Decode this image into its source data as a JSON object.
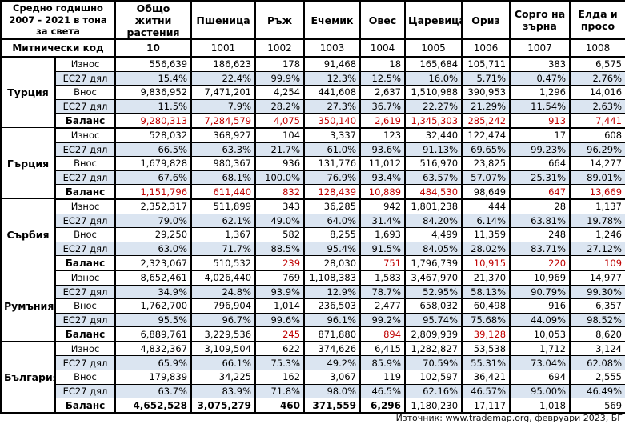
{
  "table": {
    "corner_header": "Средно годишно 2007 - 2021 в тона за света",
    "customs_code_label": "Митнически код",
    "columns": [
      {
        "label": "Общо житни растения",
        "code": "10",
        "bold_code": true
      },
      {
        "label": "Пшеница",
        "code": "1001"
      },
      {
        "label": "Ръж",
        "code": "1002"
      },
      {
        "label": "Ечемик",
        "code": "1003"
      },
      {
        "label": "Овес",
        "code": "1004"
      },
      {
        "label": "Царевица",
        "code": "1005"
      },
      {
        "label": "Ориз",
        "code": "1006"
      },
      {
        "label": "Сорго на зърна",
        "code": "1007"
      },
      {
        "label": "Елда и просо",
        "code": "1008"
      }
    ],
    "countries": [
      {
        "name": "Турция",
        "rows": [
          {
            "label": "Износ",
            "values": [
              "556,639",
              "186,623",
              "178",
              "91,468",
              "18",
              "165,684",
              "105,711",
              "383",
              "6,575"
            ]
          },
          {
            "label": "ЕС27 дял",
            "values": [
              "15.4%",
              "22.4%",
              "99.9%",
              "12.3%",
              "12.5%",
              "16.0%",
              "5.71%",
              "0.47%",
              "2.76%"
            ]
          },
          {
            "label": "Внос",
            "values": [
              "9,836,952",
              "7,471,201",
              "4,254",
              "441,608",
              "2,637",
              "1,510,988",
              "390,953",
              "1,296",
              "14,016"
            ]
          },
          {
            "label": "ЕС27 дял",
            "values": [
              "11.5%",
              "7.9%",
              "28.2%",
              "27.3%",
              "36.7%",
              "22.27%",
              "21.29%",
              "11.54%",
              "2.63%"
            ]
          },
          {
            "label": "Баланс",
            "values": [
              "9,280,313",
              "7,284,579",
              "4,075",
              "350,140",
              "2,619",
              "1,345,303",
              "285,242",
              "913",
              "7,441"
            ],
            "red": [
              true,
              true,
              true,
              true,
              true,
              true,
              true,
              true,
              true
            ]
          }
        ]
      },
      {
        "name": "Гърция",
        "rows": [
          {
            "label": "Износ",
            "values": [
              "528,032",
              "368,927",
              "104",
              "3,337",
              "123",
              "32,440",
              "122,474",
              "17",
              "608"
            ]
          },
          {
            "label": "ЕС27 дял",
            "values": [
              "66.5%",
              "63.3%",
              "21.7%",
              "61.0%",
              "93.6%",
              "91.13%",
              "69.65%",
              "99.23%",
              "96.29%"
            ]
          },
          {
            "label": "Внос",
            "values": [
              "1,679,828",
              "980,367",
              "936",
              "131,776",
              "11,012",
              "516,970",
              "23,825",
              "664",
              "14,277"
            ]
          },
          {
            "label": "ЕС27 дял",
            "values": [
              "67.6%",
              "68.1%",
              "100.0%",
              "76.9%",
              "93.4%",
              "63.57%",
              "57.07%",
              "25.31%",
              "89.01%"
            ]
          },
          {
            "label": "Баланс",
            "values": [
              "1,151,796",
              "611,440",
              "832",
              "128,439",
              "10,889",
              "484,530",
              "98,649",
              "647",
              "13,669"
            ],
            "red": [
              true,
              true,
              true,
              true,
              true,
              true,
              false,
              true,
              true
            ]
          }
        ]
      },
      {
        "name": "Сърбия",
        "rows": [
          {
            "label": "Износ",
            "values": [
              "2,352,317",
              "511,899",
              "343",
              "36,285",
              "942",
              "1,801,238",
              "444",
              "28",
              "1,137"
            ]
          },
          {
            "label": "ЕС27 дял",
            "values": [
              "79.0%",
              "62.1%",
              "49.0%",
              "64.0%",
              "31.4%",
              "84.20%",
              "6.14%",
              "63.81%",
              "19.78%"
            ]
          },
          {
            "label": "Внос",
            "values": [
              "29,250",
              "1,367",
              "582",
              "8,255",
              "1,693",
              "4,499",
              "11,359",
              "248",
              "1,246"
            ]
          },
          {
            "label": "ЕС27 дял",
            "values": [
              "63.0%",
              "71.7%",
              "88.5%",
              "95.4%",
              "91.5%",
              "84.05%",
              "28.02%",
              "83.71%",
              "27.12%"
            ]
          },
          {
            "label": "Баланс",
            "values": [
              "2,323,067",
              "510,532",
              "239",
              "28,030",
              "751",
              "1,796,739",
              "10,915",
              "220",
              "109"
            ],
            "red": [
              false,
              false,
              true,
              false,
              true,
              false,
              true,
              true,
              true
            ]
          }
        ]
      },
      {
        "name": "Румъния",
        "rows": [
          {
            "label": "Износ",
            "values": [
              "8,652,461",
              "4,026,440",
              "769",
              "1,108,383",
              "1,583",
              "3,467,970",
              "21,370",
              "10,969",
              "14,977"
            ]
          },
          {
            "label": "ЕС27 дял",
            "values": [
              "34.9%",
              "24.8%",
              "93.9%",
              "12.9%",
              "78.7%",
              "52.95%",
              "58.13%",
              "90.79%",
              "99.30%"
            ]
          },
          {
            "label": "Внос",
            "values": [
              "1,762,700",
              "796,904",
              "1,014",
              "236,503",
              "2,477",
              "658,032",
              "60,498",
              "916",
              "6,357"
            ]
          },
          {
            "label": "ЕС27 дял",
            "values": [
              "95.5%",
              "96.7%",
              "99.6%",
              "96.1%",
              "99.2%",
              "95.74%",
              "75.68%",
              "44.09%",
              "98.52%"
            ]
          },
          {
            "label": "Баланс",
            "values": [
              "6,889,761",
              "3,229,536",
              "245",
              "871,880",
              "894",
              "2,809,939",
              "39,128",
              "10,053",
              "8,620"
            ],
            "red": [
              false,
              false,
              true,
              false,
              true,
              false,
              true,
              false,
              false
            ]
          }
        ]
      },
      {
        "name": "България",
        "rows": [
          {
            "label": "Износ",
            "values": [
              "4,832,367",
              "3,109,504",
              "622",
              "374,626",
              "6,415",
              "1,282,827",
              "53,538",
              "1,712",
              "3,124"
            ]
          },
          {
            "label": "ЕС27 дял",
            "values": [
              "65.9%",
              "66.1%",
              "75.3%",
              "49.2%",
              "85.9%",
              "70.59%",
              "55.31%",
              "73.04%",
              "62.08%"
            ]
          },
          {
            "label": "Внос",
            "values": [
              "179,839",
              "34,225",
              "162",
              "3,067",
              "119",
              "102,597",
              "36,421",
              "694",
              "2,555"
            ]
          },
          {
            "label": "ЕС27 дял",
            "values": [
              "63.7%",
              "83.9%",
              "71.8%",
              "98.0%",
              "46.5%",
              "62.16%",
              "46.57%",
              "95.00%",
              "46.49%"
            ]
          },
          {
            "label": "Баланс",
            "values": [
              "4,652,528",
              "3,075,279",
              "460",
              "371,559",
              "6,296",
              "1,180,230",
              "17,117",
              "1,018",
              "569"
            ],
            "bold": [
              true,
              true,
              true,
              true,
              true,
              false,
              false,
              false,
              false
            ]
          }
        ]
      }
    ],
    "source_note": "Източник: www.trademap.org, февруари 2023, БГ"
  },
  "colors": {
    "alt_row_background": "#dbe5f1",
    "negative_balance_text": "#c00000",
    "border": "#000000"
  }
}
